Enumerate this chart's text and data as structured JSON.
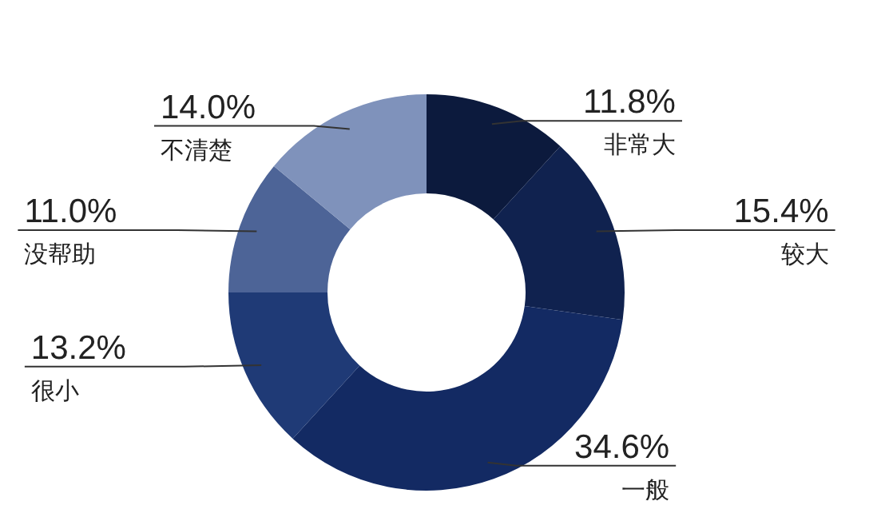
{
  "chart_data": {
    "type": "donut",
    "categories": [
      "非常大",
      "较大",
      "一般",
      "很小",
      "没帮助",
      "不清楚"
    ],
    "values": [
      11.8,
      15.4,
      34.6,
      13.2,
      11.0,
      14.0
    ],
    "value_labels": [
      "11.8%",
      "15.4%",
      "34.6%",
      "13.2%",
      "11.0%",
      "14.0%"
    ],
    "colors": [
      "#0c1a3d",
      "#10224f",
      "#132a63",
      "#1f3a76",
      "#4d6497",
      "#7f92bb"
    ]
  }
}
